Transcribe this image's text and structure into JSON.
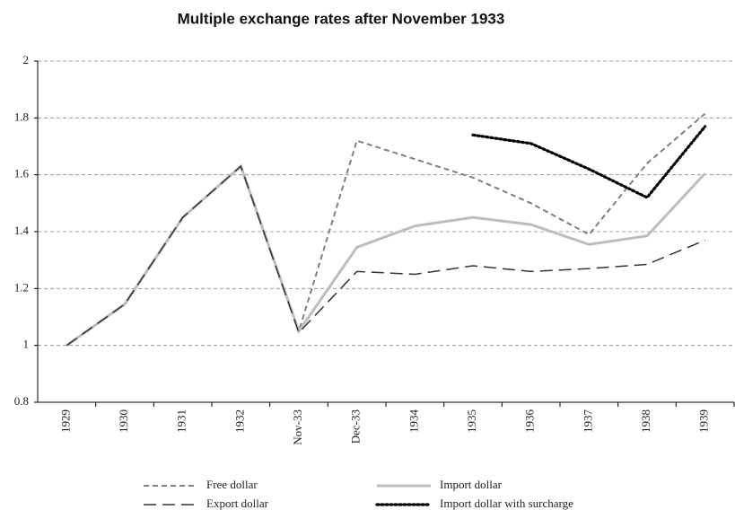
{
  "chart_data": {
    "type": "line",
    "title": "Multiple exchange rates after November 1933",
    "categories": [
      "1929",
      "1930",
      "1931",
      "1932",
      "Nov-33",
      "Dec-33",
      "1934",
      "1935",
      "1936",
      "1937",
      "1938",
      "1939"
    ],
    "series": [
      {
        "name": "Free dollar",
        "color": "#808080",
        "line_style": "short-dash",
        "values": [
          1.0,
          1.145,
          1.45,
          1.63,
          1.05,
          1.72,
          1.655,
          1.59,
          1.5,
          1.39,
          1.64,
          1.815
        ]
      },
      {
        "name": "Import dollar",
        "color": "#bdbdbd",
        "line_style": "solid",
        "values": [
          1.0,
          1.145,
          1.45,
          1.63,
          1.05,
          1.345,
          1.42,
          1.45,
          1.425,
          1.355,
          1.385,
          1.605
        ]
      },
      {
        "name": "Export dollar",
        "color": "#333333",
        "line_style": "long-dash",
        "values": [
          1.0,
          1.145,
          1.45,
          1.63,
          1.045,
          1.26,
          1.25,
          1.28,
          1.26,
          1.27,
          1.285,
          1.37
        ]
      },
      {
        "name": "Import dollar with surcharge",
        "color": "#000000",
        "line_style": "dotted",
        "values": [
          null,
          null,
          null,
          null,
          null,
          null,
          null,
          1.74,
          1.71,
          1.62,
          1.52,
          1.77
        ]
      }
    ],
    "ylim": [
      0.8,
      2
    ],
    "yticks": [
      0.8,
      1,
      1.2,
      1.4,
      1.6,
      1.8,
      2
    ],
    "grid": true,
    "legend": "bottom"
  }
}
